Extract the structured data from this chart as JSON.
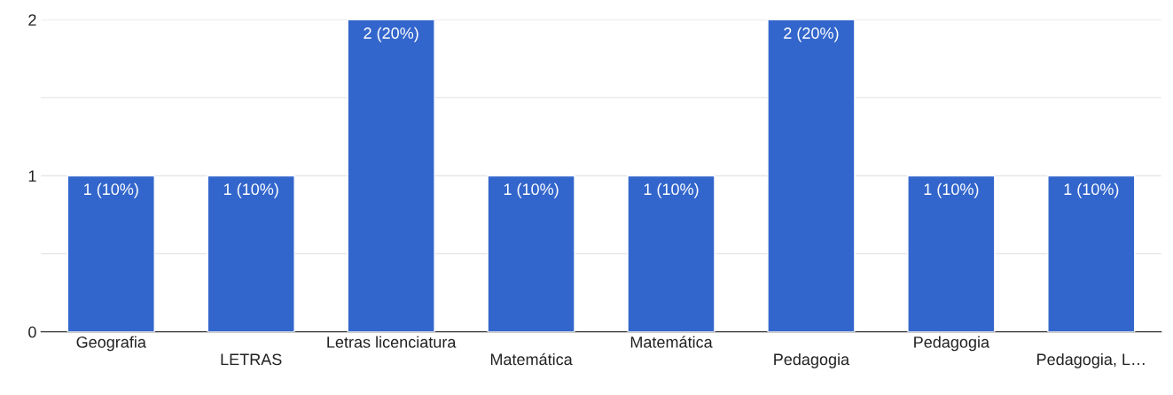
{
  "chart_data": {
    "type": "bar",
    "categories": [
      "Geografia",
      "LETRAS",
      "Letras licenciatura",
      "Matemática",
      "Matemática",
      "Pedagogia",
      "Pedagogia",
      "Pedagogia, L…"
    ],
    "values": [
      1,
      1,
      2,
      1,
      1,
      2,
      1,
      1
    ],
    "value_labels": [
      "1 (10%)",
      "1 (10%)",
      "2 (20%)",
      "1 (10%)",
      "1 (10%)",
      "2 (20%)",
      "1 (10%)",
      "1 (10%)"
    ],
    "color": "#3366cc",
    "ylim": [
      0,
      2
    ],
    "yticks": [
      0,
      {
        "value": 0.5,
        "label": null
      },
      1,
      {
        "value": 1.5,
        "label": null
      },
      2
    ],
    "grid": "y",
    "legend": false
  }
}
